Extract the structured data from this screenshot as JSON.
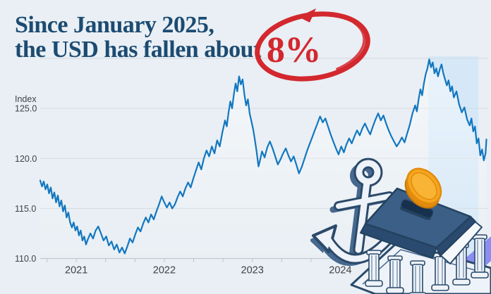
{
  "headline": {
    "line1": "Since January 2025,",
    "line2_prefix": "the USD has fallen about",
    "highlight_value": "8%"
  },
  "colors": {
    "bg": "#e9eff4",
    "headline": "#1c4b72",
    "red": "#d2282e",
    "line": "#1277c0",
    "grid": "#d4dade",
    "axis": "#c2c9d0",
    "tick": "#b9c1c9",
    "label": "#3e4247",
    "band": "#d6e8f7",
    "ill_outline": "#2b4a6a",
    "ill_navy": "#3b5f87",
    "ill_navy_dark": "#2a4b6f",
    "ill_slot": "#16304e",
    "ill_light": "#eef3f9",
    "ill_mid": "#dde7f1",
    "ill_slate": "#47698f",
    "coin": "#f6a51f",
    "coin_dark": "#e18c0c",
    "coin_rim": "#f9b335",
    "shadow_purple": "#8a8ef1"
  },
  "chart_data": {
    "type": "line",
    "title": "Since January 2025, the USD has fallen about 8%",
    "ylabel": "Index",
    "y_axis": {
      "label": "Index",
      "range": [
        110,
        130
      ],
      "tick_values": [
        125,
        120,
        115,
        110
      ],
      "gridline_values": [
        110,
        115,
        120,
        125,
        130
      ],
      "tick_format_decimals": 1
    },
    "x_axis": {
      "range": [
        2020.59,
        2025.672
      ],
      "year_labels": [
        2021,
        2022,
        2023,
        2024
      ],
      "minor_tick_step_years": 0.33333
    },
    "highlight_band": {
      "from": 2025.0,
      "to": 2025.57
    },
    "legend": "none",
    "grid": "horizontal",
    "series": [
      {
        "name": "USD index",
        "x": [
          2020.59,
          2020.61,
          2020.63,
          2020.65,
          2020.67,
          2020.69,
          2020.71,
          2020.73,
          2020.75,
          2020.77,
          2020.79,
          2020.81,
          2020.83,
          2020.85,
          2020.87,
          2020.89,
          2020.91,
          2020.93,
          2020.95,
          2020.97,
          2020.99,
          2021.01,
          2021.03,
          2021.05,
          2021.07,
          2021.09,
          2021.11,
          2021.13,
          2021.16,
          2021.19,
          2021.22,
          2021.25,
          2021.28,
          2021.31,
          2021.34,
          2021.37,
          2021.4,
          2021.43,
          2021.46,
          2021.49,
          2021.52,
          2021.55,
          2021.58,
          2021.61,
          2021.64,
          2021.67,
          2021.7,
          2021.73,
          2021.76,
          2021.79,
          2021.82,
          2021.85,
          2021.88,
          2021.91,
          2021.94,
          2021.97,
          2022.0,
          2022.03,
          2022.06,
          2022.09,
          2022.12,
          2022.15,
          2022.18,
          2022.21,
          2022.24,
          2022.27,
          2022.3,
          2022.33,
          2022.36,
          2022.39,
          2022.42,
          2022.45,
          2022.48,
          2022.51,
          2022.54,
          2022.57,
          2022.6,
          2022.63,
          2022.66,
          2022.69,
          2022.71,
          2022.73,
          2022.75,
          2022.77,
          2022.79,
          2022.81,
          2022.83,
          2022.85,
          2022.87,
          2022.89,
          2022.91,
          2022.93,
          2022.95,
          2022.97,
          2022.99,
          2023.01,
          2023.03,
          2023.05,
          2023.07,
          2023.09,
          2023.11,
          2023.14,
          2023.17,
          2023.2,
          2023.23,
          2023.26,
          2023.29,
          2023.32,
          2023.35,
          2023.38,
          2023.41,
          2023.44,
          2023.47,
          2023.5,
          2023.53,
          2023.56,
          2023.59,
          2023.62,
          2023.65,
          2023.68,
          2023.71,
          2023.74,
          2023.77,
          2023.8,
          2023.83,
          2023.86,
          2023.89,
          2023.92,
          2023.95,
          2023.98,
          2024.01,
          2024.04,
          2024.07,
          2024.1,
          2024.13,
          2024.16,
          2024.19,
          2024.22,
          2024.25,
          2024.28,
          2024.31,
          2024.34,
          2024.37,
          2024.4,
          2024.43,
          2024.46,
          2024.49,
          2024.52,
          2024.55,
          2024.58,
          2024.61,
          2024.64,
          2024.67,
          2024.7,
          2024.73,
          2024.76,
          2024.79,
          2024.82,
          2024.85,
          2024.87,
          2024.89,
          2024.91,
          2024.93,
          2024.95,
          2024.97,
          2024.99,
          2025.01,
          2025.03,
          2025.05,
          2025.07,
          2025.09,
          2025.11,
          2025.13,
          2025.15,
          2025.17,
          2025.19,
          2025.21,
          2025.23,
          2025.25,
          2025.27,
          2025.29,
          2025.32,
          2025.35,
          2025.38,
          2025.41,
          2025.44,
          2025.47,
          2025.49,
          2025.51,
          2025.53,
          2025.55,
          2025.57,
          2025.59,
          2025.61,
          2025.63,
          2025.65,
          2025.66
        ],
        "y": [
          117.8,
          117.2,
          117.7,
          116.9,
          117.4,
          116.5,
          117.1,
          116.0,
          116.6,
          115.6,
          116.3,
          115.2,
          115.8,
          114.7,
          115.3,
          114.1,
          114.6,
          113.6,
          113.1,
          113.6,
          112.8,
          113.2,
          112.3,
          112.8,
          111.8,
          112.2,
          111.4,
          111.9,
          112.5,
          112.0,
          112.8,
          113.2,
          112.5,
          111.8,
          112.2,
          111.3,
          111.7,
          110.9,
          111.4,
          110.6,
          111.1,
          110.5,
          111.2,
          112.0,
          111.6,
          112.4,
          113.1,
          112.7,
          113.5,
          114.1,
          113.6,
          114.4,
          113.9,
          114.7,
          115.4,
          116.2,
          115.6,
          115.1,
          115.6,
          115.0,
          115.4,
          116.1,
          116.7,
          116.2,
          117.0,
          117.6,
          117.1,
          118.0,
          118.8,
          119.6,
          118.9,
          120.0,
          120.8,
          120.2,
          121.2,
          120.5,
          121.8,
          121.2,
          122.6,
          123.8,
          123.2,
          124.6,
          125.7,
          125.0,
          126.4,
          127.5,
          126.7,
          128.2,
          127.4,
          127.9,
          126.4,
          125.3,
          125.9,
          124.5,
          123.7,
          122.9,
          121.8,
          120.6,
          119.2,
          119.9,
          120.7,
          120.1,
          121.1,
          121.7,
          121.0,
          120.2,
          119.4,
          119.9,
          120.5,
          121.0,
          120.3,
          119.7,
          120.2,
          119.4,
          118.5,
          119.1,
          119.9,
          120.7,
          121.4,
          122.1,
          122.8,
          123.5,
          124.2,
          123.6,
          124.0,
          123.2,
          122.4,
          121.7,
          121.0,
          120.4,
          121.2,
          120.6,
          121.4,
          122.0,
          121.5,
          122.2,
          122.8,
          122.3,
          123.0,
          123.5,
          122.9,
          122.4,
          123.2,
          123.9,
          124.5,
          123.8,
          124.3,
          123.5,
          122.8,
          122.2,
          121.7,
          121.2,
          121.6,
          122.1,
          121.6,
          122.5,
          123.4,
          124.5,
          125.3,
          124.7,
          125.9,
          126.9,
          126.3,
          127.5,
          128.4,
          129.0,
          129.9,
          129.1,
          129.6,
          128.5,
          129.0,
          128.2,
          128.9,
          129.4,
          128.5,
          127.9,
          127.3,
          127.8,
          126.7,
          127.2,
          126.1,
          126.7,
          125.4,
          124.6,
          125.1,
          123.9,
          123.3,
          124.0,
          122.7,
          123.2,
          121.5,
          122.0,
          120.3,
          120.9,
          119.8,
          120.5,
          121.9
        ]
      }
    ]
  }
}
